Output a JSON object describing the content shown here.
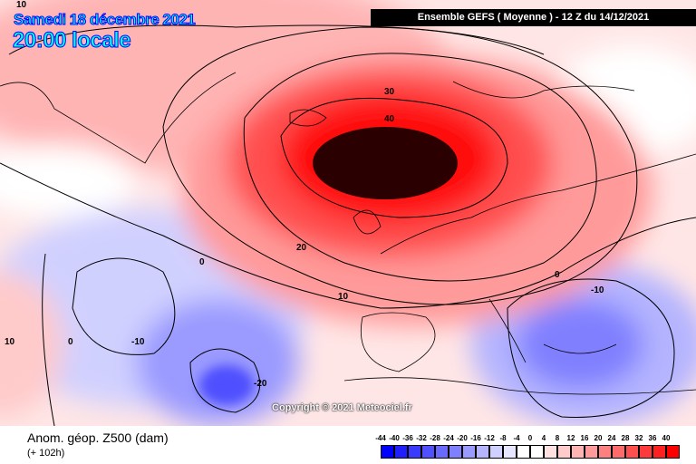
{
  "header": {
    "date": "Samedi 18 décembre 2021",
    "time": "20:00 locale",
    "model_run": "Ensemble GEFS  ( Moyenne )  -  12 Z du 14/12/2021"
  },
  "copyright": "Copyright © 2021 Meteociel.fr",
  "footer": {
    "variable": "Anom. géop. Z500 (dam)",
    "lead_time": "(+ 102h)"
  },
  "legend": {
    "labels": [
      "-44",
      "-40",
      "-36",
      "-32",
      "-28",
      "-24",
      "-20",
      "-16",
      "-12",
      "-8",
      "-4",
      "0",
      "4",
      "8",
      "12",
      "16",
      "20",
      "24",
      "28",
      "32",
      "36",
      "40"
    ],
    "colors": [
      "#0000ff",
      "#2020ff",
      "#3a3aff",
      "#5050ff",
      "#6a6aff",
      "#8080ff",
      "#9a9aff",
      "#b4b4ff",
      "#d0d0ff",
      "#e6e6ff",
      "#ffffff",
      "#ffffff",
      "#ffe0e0",
      "#ffcaca",
      "#ffb4b4",
      "#ff9a9a",
      "#ff8080",
      "#ff6a6a",
      "#ff5050",
      "#ff3a3a",
      "#ff2020",
      "#ff0000"
    ]
  },
  "contour_labels": [
    "10",
    "30",
    "40",
    "20",
    "10",
    "0",
    "-10",
    "-20",
    "0",
    "10",
    "-10",
    "0"
  ],
  "colors": {
    "max_anomaly": "#2a0000",
    "coast": "#000000"
  }
}
